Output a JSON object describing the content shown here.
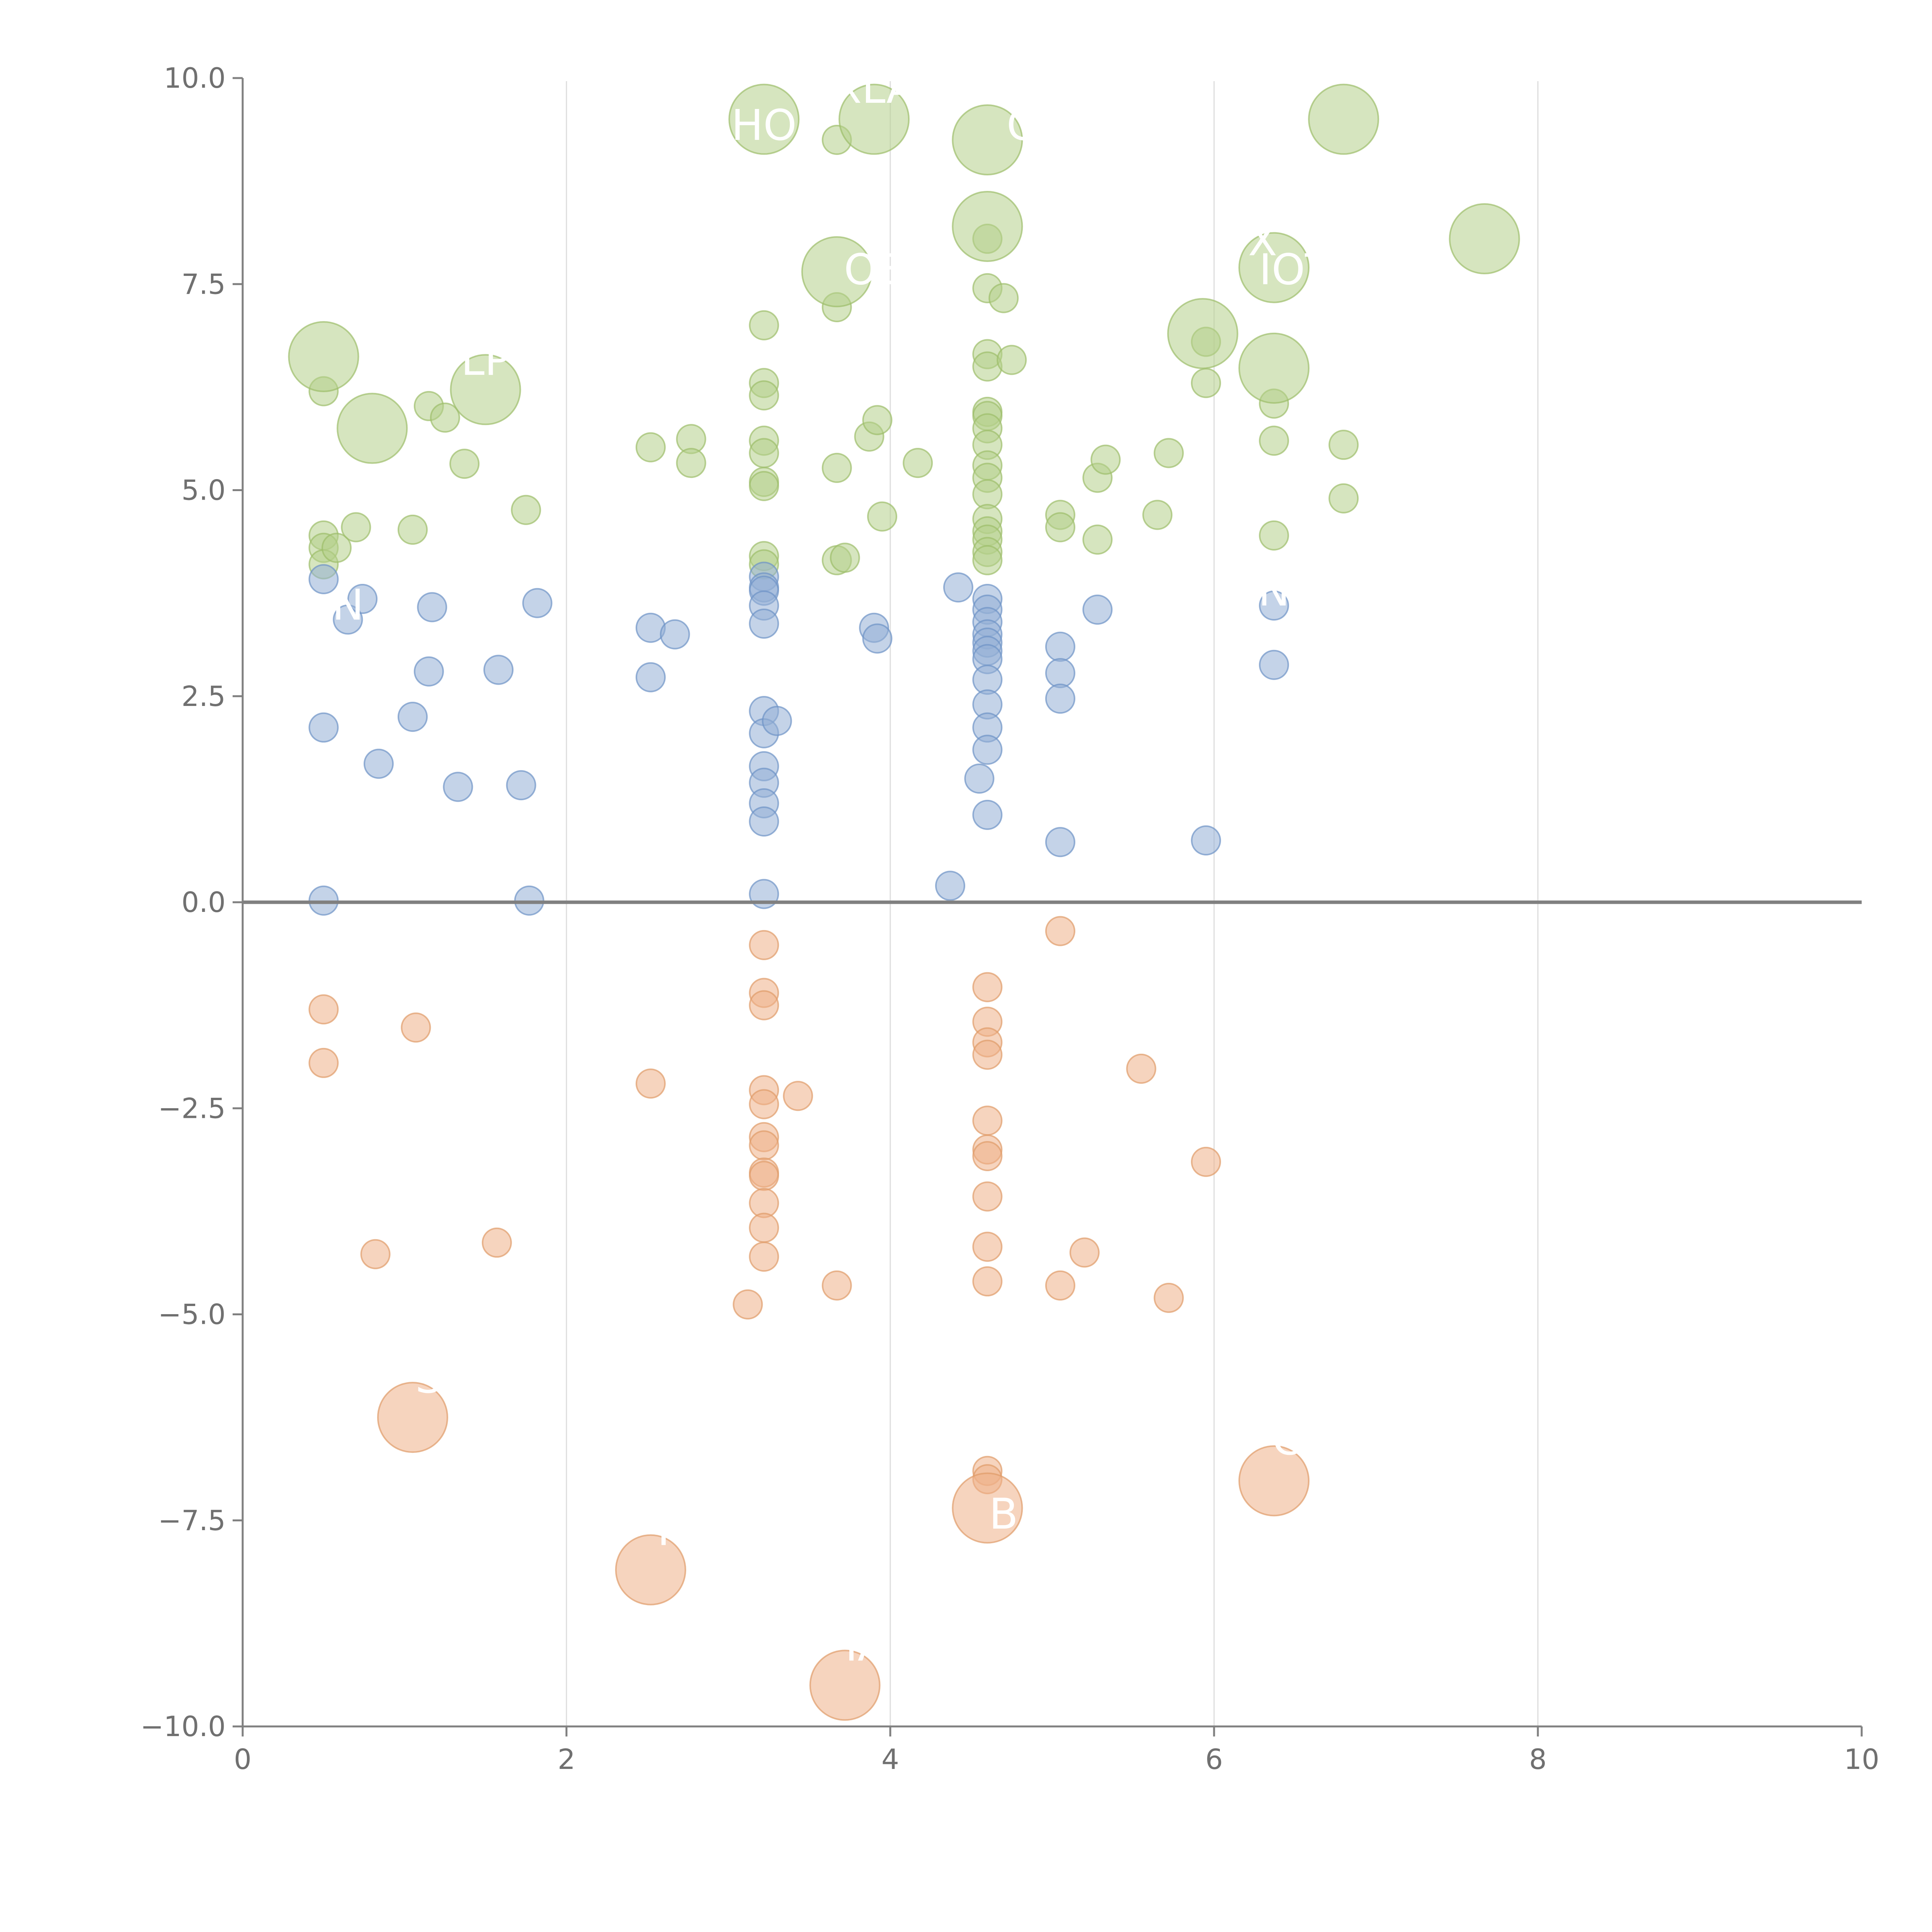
{
  "chart_data": {
    "type": "scatter",
    "title": "",
    "xlabel": "",
    "ylabel": "",
    "xlim": [
      0,
      10
    ],
    "ylim": [
      -10,
      10
    ],
    "x_ticks": [
      0,
      2,
      4,
      6,
      8,
      10
    ],
    "x_tick_labels": [
      "0",
      "2",
      "4",
      "6",
      "8",
      "10"
    ],
    "y_ticks": [
      -10,
      -7.5,
      -5,
      -2.5,
      0,
      2.5,
      5,
      7.5,
      10
    ],
    "y_tick_labels": [
      "−10.0",
      "−7.5",
      "−5.0",
      "−2.5",
      "0.0",
      "2.5",
      "5.0",
      "7.5",
      "10.0"
    ],
    "vertical_grid": true,
    "horizontal_grid": false,
    "zero_line": true,
    "legend": "none",
    "colors": {
      "green": {
        "fill": "#b5cf8a",
        "stroke": "#9dbd6a"
      },
      "blue": {
        "fill": "#93afd6",
        "stroke": "#6e93c6"
      },
      "orange": {
        "fill": "#eeb188",
        "stroke": "#df9b68"
      }
    },
    "bubbles": {
      "green": [
        [
          0.5,
          6.2
        ],
        [
          0.5,
          4.45
        ],
        [
          0.5,
          4.3
        ],
        [
          0.5,
          4.1
        ],
        [
          0.58,
          4.3
        ],
        [
          0.7,
          4.55
        ],
        [
          1.05,
          4.52
        ],
        [
          1.15,
          6.02
        ],
        [
          1.25,
          5.88
        ],
        [
          1.37,
          5.32
        ],
        [
          1.75,
          4.76
        ],
        [
          2.52,
          5.52
        ],
        [
          2.77,
          5.62
        ],
        [
          2.77,
          5.33
        ],
        [
          3.22,
          7.0
        ],
        [
          3.22,
          6.3
        ],
        [
          3.22,
          6.15
        ],
        [
          3.22,
          5.6
        ],
        [
          3.22,
          5.45
        ],
        [
          3.22,
          5.1
        ],
        [
          3.22,
          5.05
        ],
        [
          3.22,
          4.2
        ],
        [
          3.22,
          4.1
        ],
        [
          3.67,
          9.25
        ],
        [
          3.67,
          7.22
        ],
        [
          3.67,
          5.27
        ],
        [
          3.67,
          4.15
        ],
        [
          3.72,
          4.18
        ],
        [
          3.87,
          5.65
        ],
        [
          3.92,
          5.85
        ],
        [
          3.95,
          4.68
        ],
        [
          4.17,
          5.33
        ],
        [
          4.6,
          8.05
        ],
        [
          4.6,
          7.45
        ],
        [
          4.6,
          6.65
        ],
        [
          4.6,
          6.5
        ],
        [
          4.6,
          5.95
        ],
        [
          4.6,
          5.9
        ],
        [
          4.6,
          5.75
        ],
        [
          4.6,
          5.55
        ],
        [
          4.6,
          5.3
        ],
        [
          4.6,
          5.15
        ],
        [
          4.6,
          4.95
        ],
        [
          4.6,
          4.65
        ],
        [
          4.6,
          4.5
        ],
        [
          4.6,
          4.4
        ],
        [
          4.6,
          4.25
        ],
        [
          4.6,
          4.15
        ],
        [
          4.7,
          7.33
        ],
        [
          4.75,
          6.58
        ],
        [
          5.05,
          4.7
        ],
        [
          5.05,
          4.55
        ],
        [
          5.28,
          5.15
        ],
        [
          5.28,
          4.4
        ],
        [
          5.33,
          5.37
        ],
        [
          5.65,
          4.7
        ],
        [
          5.72,
          5.45
        ],
        [
          5.95,
          6.8
        ],
        [
          5.95,
          6.3
        ],
        [
          6.37,
          6.05
        ],
        [
          6.37,
          5.6
        ],
        [
          6.37,
          4.45
        ],
        [
          6.8,
          5.55
        ],
        [
          6.8,
          4.9
        ]
      ],
      "green_large": [
        [
          0.5,
          6.62
        ],
        [
          0.8,
          5.75
        ],
        [
          1.5,
          6.22
        ],
        [
          3.22,
          9.5
        ],
        [
          3.67,
          7.65
        ],
        [
          3.9,
          9.5
        ],
        [
          4.6,
          9.25
        ],
        [
          4.6,
          8.2
        ],
        [
          5.93,
          6.9
        ],
        [
          6.37,
          7.7
        ],
        [
          6.37,
          6.48
        ],
        [
          6.8,
          9.5
        ],
        [
          7.67,
          8.05
        ]
      ],
      "blue": [
        [
          0.5,
          3.92
        ],
        [
          0.5,
          2.12
        ],
        [
          0.5,
          0.02
        ],
        [
          0.65,
          3.43
        ],
        [
          0.74,
          3.68
        ],
        [
          0.84,
          1.68
        ],
        [
          1.05,
          2.25
        ],
        [
          1.15,
          2.8
        ],
        [
          1.17,
          3.58
        ],
        [
          1.33,
          1.4
        ],
        [
          1.58,
          2.82
        ],
        [
          1.72,
          1.42
        ],
        [
          1.77,
          0.02
        ],
        [
          1.82,
          3.63
        ],
        [
          2.52,
          3.33
        ],
        [
          2.52,
          2.73
        ],
        [
          2.67,
          3.25
        ],
        [
          3.22,
          3.95
        ],
        [
          3.22,
          3.82
        ],
        [
          3.22,
          3.78
        ],
        [
          3.22,
          3.6
        ],
        [
          3.22,
          3.38
        ],
        [
          3.22,
          2.32
        ],
        [
          3.22,
          2.05
        ],
        [
          3.22,
          1.65
        ],
        [
          3.22,
          1.45
        ],
        [
          3.22,
          1.2
        ],
        [
          3.22,
          0.98
        ],
        [
          3.22,
          0.1
        ],
        [
          3.3,
          2.2
        ],
        [
          3.9,
          3.33
        ],
        [
          3.92,
          3.2
        ],
        [
          4.37,
          0.2
        ],
        [
          4.42,
          3.82
        ],
        [
          4.55,
          1.5
        ],
        [
          4.6,
          3.68
        ],
        [
          4.6,
          3.55
        ],
        [
          4.6,
          3.4
        ],
        [
          4.6,
          3.25
        ],
        [
          4.6,
          3.15
        ],
        [
          4.6,
          3.05
        ],
        [
          4.6,
          2.95
        ],
        [
          4.6,
          2.7
        ],
        [
          4.6,
          2.4
        ],
        [
          4.6,
          2.12
        ],
        [
          4.6,
          1.85
        ],
        [
          4.6,
          1.06
        ],
        [
          5.05,
          3.1
        ],
        [
          5.05,
          2.78
        ],
        [
          5.05,
          2.47
        ],
        [
          5.05,
          0.73
        ],
        [
          5.28,
          3.55
        ],
        [
          5.95,
          0.75
        ],
        [
          6.37,
          3.6
        ],
        [
          6.37,
          2.88
        ]
      ],
      "orange": [
        [
          0.5,
          -1.3
        ],
        [
          0.5,
          -1.95
        ],
        [
          0.82,
          -4.27
        ],
        [
          1.07,
          -1.52
        ],
        [
          1.57,
          -4.13
        ],
        [
          2.52,
          -2.2
        ],
        [
          3.12,
          -4.88
        ],
        [
          3.22,
          -0.52
        ],
        [
          3.22,
          -1.1
        ],
        [
          3.22,
          -1.25
        ],
        [
          3.22,
          -2.28
        ],
        [
          3.22,
          -2.45
        ],
        [
          3.22,
          -2.85
        ],
        [
          3.22,
          -2.95
        ],
        [
          3.22,
          -3.28
        ],
        [
          3.22,
          -3.32
        ],
        [
          3.22,
          -3.65
        ],
        [
          3.22,
          -3.95
        ],
        [
          3.22,
          -4.3
        ],
        [
          3.43,
          -2.35
        ],
        [
          3.67,
          -4.65
        ],
        [
          4.6,
          -1.03
        ],
        [
          4.6,
          -1.45
        ],
        [
          4.6,
          -1.7
        ],
        [
          4.6,
          -1.85
        ],
        [
          4.6,
          -2.65
        ],
        [
          4.6,
          -3.0
        ],
        [
          4.6,
          -3.08
        ],
        [
          4.6,
          -3.57
        ],
        [
          4.6,
          -4.18
        ],
        [
          4.6,
          -4.6
        ],
        [
          4.6,
          -6.9
        ],
        [
          4.6,
          -7.0
        ],
        [
          5.05,
          -0.35
        ],
        [
          5.05,
          -4.65
        ],
        [
          5.2,
          -4.25
        ],
        [
          5.55,
          -2.02
        ],
        [
          5.72,
          -4.8
        ],
        [
          5.95,
          -3.15
        ]
      ],
      "orange_large": [
        [
          1.05,
          -6.25
        ],
        [
          2.52,
          -8.1
        ],
        [
          3.72,
          -9.5
        ],
        [
          4.6,
          -7.35
        ],
        [
          6.37,
          -7.02
        ]
      ]
    },
    "annotations": [
      {
        "text": "N",
        "x": 0.65,
        "y": 3.43
      },
      {
        "text": "LP",
        "x": 1.5,
        "y": 6.4
      },
      {
        "text": "HO",
        "x": 3.22,
        "y": 9.25
      },
      {
        "text": "XLA",
        "x": 3.9,
        "y": 9.7
      },
      {
        "text": "G",
        "x": 4.82,
        "y": 9.25
      },
      {
        "text": "OE",
        "x": 3.9,
        "y": 7.5
      },
      {
        "text": "X",
        "x": 6.3,
        "y": 7.85
      },
      {
        "text": "IOT",
        "x": 6.5,
        "y": 7.5
      },
      {
        "text": "N",
        "x": 6.37,
        "y": 3.6
      },
      {
        "text": "S",
        "x": 1.15,
        "y": -5.95
      },
      {
        "text": "I",
        "x": 2.6,
        "y": -7.8
      },
      {
        "text": "B",
        "x": 4.7,
        "y": -7.6
      },
      {
        "text": "C",
        "x": 6.45,
        "y": -6.7
      },
      {
        "text": "IA",
        "x": 3.85,
        "y": -9.2
      }
    ]
  }
}
